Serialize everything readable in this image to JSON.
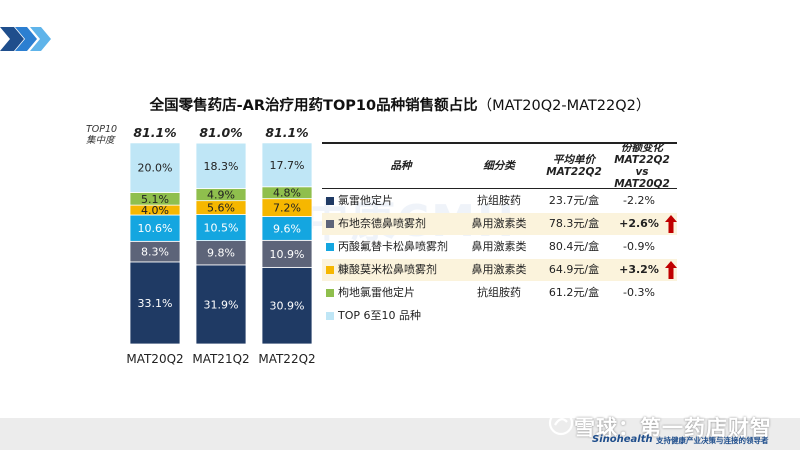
{
  "title": "全国零售药店-AR治疗用药TOP10品种销售额占比",
  "title_range": "（MAT20Q2-MAT22Q2）",
  "concentration_label": "TOP10\n集中度",
  "concentration": [
    "81.1%",
    "81.0%",
    "81.1%"
  ],
  "chart_data": {
    "type": "bar",
    "stacked": true,
    "categories": [
      "MAT20Q2",
      "MAT21Q2",
      "MAT22Q2"
    ],
    "series": [
      {
        "name": "氯雷他定片",
        "color": "#1f3a64",
        "values": [
          33.1,
          31.9,
          30.9
        ],
        "labels": [
          "33.1%",
          "31.9%",
          "30.9%"
        ]
      },
      {
        "name": "布地奈德鼻喷雾剂",
        "color": "#5d6479",
        "values": [
          8.3,
          9.8,
          10.9
        ],
        "labels": [
          "8.3%",
          "9.8%",
          "10.9%"
        ]
      },
      {
        "name": "丙酸氟替卡松鼻喷雾剂",
        "color": "#14a6e0",
        "values": [
          10.6,
          10.5,
          9.6
        ],
        "labels": [
          "10.6%",
          "10.5%",
          "9.6%"
        ]
      },
      {
        "name": "糠酸莫米松鼻喷雾剂",
        "color": "#f6b700",
        "values": [
          4.0,
          5.6,
          7.2
        ],
        "labels": [
          "4.0%",
          "5.6%",
          "7.2%"
        ]
      },
      {
        "name": "枸地氯雷他定片",
        "color": "#8fbf4d",
        "values": [
          5.1,
          4.9,
          4.8
        ],
        "labels": [
          "5.1%",
          "4.9%",
          "4.8%"
        ]
      },
      {
        "name": "TOP 6至10 品种",
        "color": "#bfe6f6",
        "values": [
          20.0,
          18.3,
          17.7
        ],
        "labels": [
          "20.0%",
          "18.3%",
          "17.7%"
        ]
      }
    ],
    "ylim": [
      0,
      100
    ]
  },
  "table": {
    "headers": {
      "product": "品种",
      "class": "细分类",
      "price": "平均单价\nMAT22Q2",
      "share": "份额变化\nMAT22Q2 vs\nMAT20Q2"
    },
    "rows": [
      {
        "name": "氯雷他定片",
        "class": "抗组胺药",
        "price": "23.7元/盒",
        "share": "-2.2%",
        "bold": false,
        "arrow": false,
        "shade": false
      },
      {
        "name": "布地奈德鼻喷雾剂",
        "class": "鼻用激素类",
        "price": "78.3元/盒",
        "share": "+2.6%",
        "bold": true,
        "arrow": true,
        "shade": true
      },
      {
        "name": "丙酸氟替卡松鼻喷雾剂",
        "class": "鼻用激素类",
        "price": "80.4元/盒",
        "share": "-0.9%",
        "bold": false,
        "arrow": false,
        "shade": false
      },
      {
        "name": "糠酸莫米松鼻喷雾剂",
        "class": "鼻用激素类",
        "price": "64.9元/盒",
        "share": "+3.2%",
        "bold": true,
        "arrow": true,
        "shade": true
      },
      {
        "name": "枸地氯雷他定片",
        "class": "抗组胺药",
        "price": "61.2元/盒",
        "share": "-0.3%",
        "bold": false,
        "arrow": false,
        "shade": false
      },
      {
        "name": "TOP 6至10 品种",
        "class": "",
        "price": "",
        "share": "",
        "bold": false,
        "arrow": false,
        "shade": false
      }
    ]
  },
  "colors": {
    "arrow": "#c00000",
    "chevron": "#1f6fc0",
    "accent": "#1f4e8c"
  },
  "footer": {
    "xueqiu": "雪球：第一药店财智",
    "brand": "Sinohealth",
    "tagline": "支持健康产业决策与连接的领导者"
  }
}
